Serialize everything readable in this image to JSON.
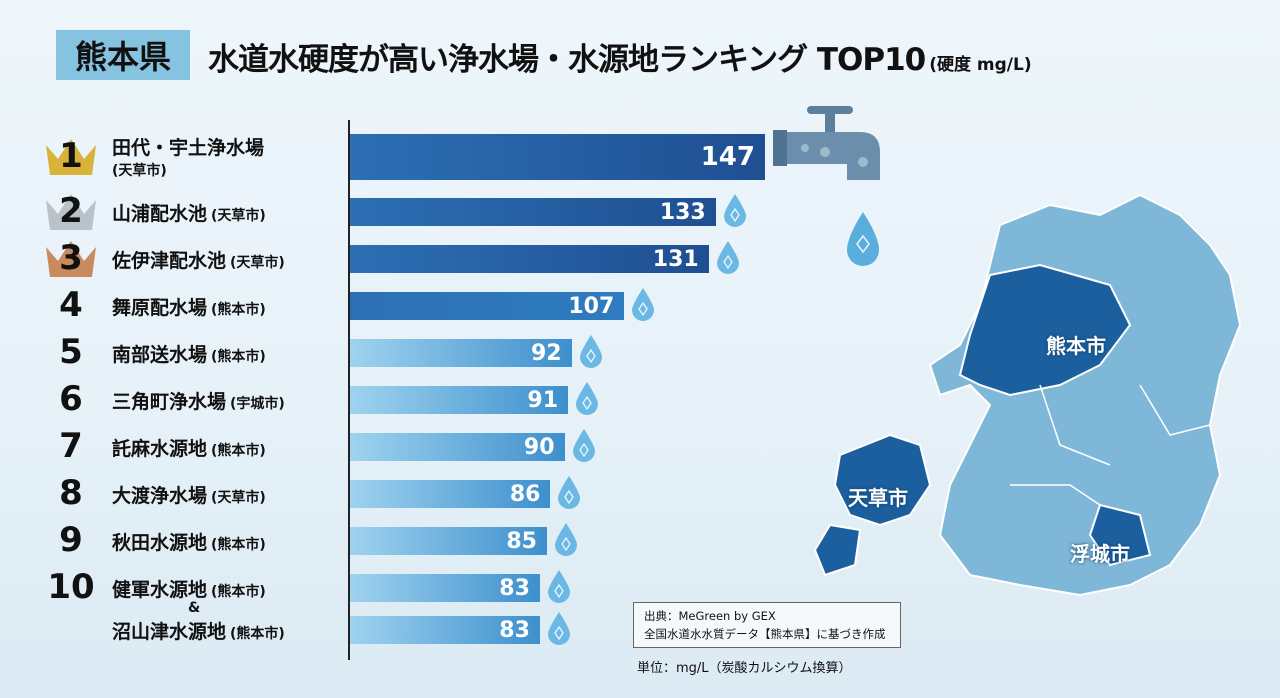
{
  "header": {
    "prefecture": "熊本県",
    "title": "水道水硬度が高い浄水場・水源地ランキング TOP10",
    "unit_note": "(硬度 mg/L)"
  },
  "colors": {
    "bar_dark": "#1f4f92",
    "bar_light": "#8ccbea",
    "badge": "#86c3e0",
    "map_base": "#7fb7d8",
    "map_highlight": "#1b5f9e",
    "gold": "#d9b23a",
    "silver": "#b8c2c8",
    "bronze": "#c98a5e"
  },
  "chart_data": {
    "type": "bar",
    "orientation": "horizontal",
    "xlim": [
      29,
      150
    ],
    "categories": [
      "田代・宇土浄水場",
      "山浦配水池",
      "佐伊津配水池",
      "舞原配水場",
      "南部送水場",
      "三角町浄水場",
      "託麻水源地",
      "大渡浄水場",
      "秋田水源地",
      "健軍水源地",
      "沼山津水源地"
    ],
    "cities": [
      "(天草市)",
      "(天草市)",
      "(天草市)",
      "(熊本市)",
      "(熊本市)",
      "(宇城市)",
      "(熊本市)",
      "(天草市)",
      "(熊本市)",
      "(熊本市)",
      "(熊本市)"
    ],
    "ranks": [
      "1",
      "2",
      "3",
      "4",
      "5",
      "6",
      "7",
      "8",
      "9",
      "10",
      ""
    ],
    "values": [
      147,
      133,
      131,
      107,
      92,
      91,
      90,
      86,
      85,
      83,
      83
    ],
    "value_labels": [
      "147",
      "133",
      "131",
      "107",
      "92",
      "91",
      "90",
      "86",
      "85",
      "83",
      "83"
    ],
    "tie_marker": "&"
  },
  "map": {
    "labels": [
      "熊本市",
      "天草市",
      "浮城市"
    ]
  },
  "footer": {
    "source_line1": "出典：MeGreen by GEX",
    "source_line2": "全国水道水水質データ【熊本県】に基づき作成",
    "unit": "単位：mg/L（炭酸カルシウム換算）"
  },
  "icons": [
    "crown-icon",
    "faucet-icon",
    "water-drop-icon"
  ]
}
